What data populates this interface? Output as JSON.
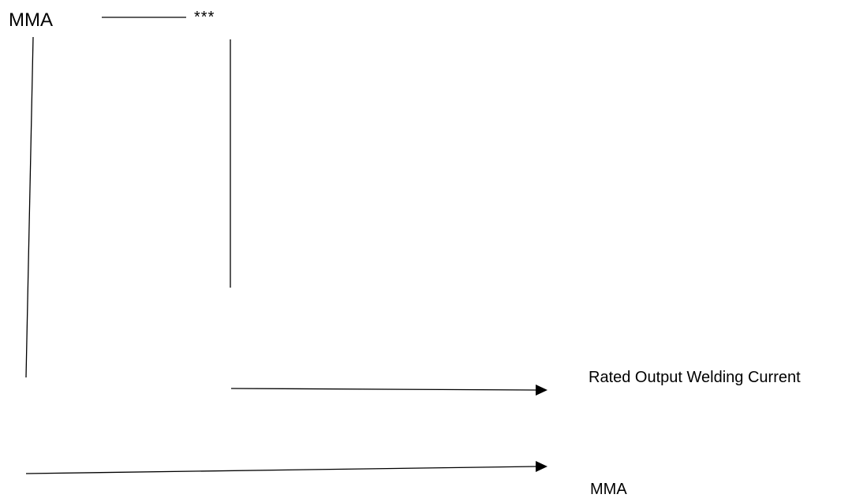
{
  "diagram": {
    "model_code": "MMA",
    "suffix_placeholder": "***",
    "annotations": [
      {
        "id": "rated-current",
        "text": "Rated Output Welding Current"
      },
      {
        "id": "process",
        "text": "MMA"
      }
    ]
  },
  "colors": {
    "line": "#000000",
    "text": "#000000",
    "background": "#ffffff"
  }
}
